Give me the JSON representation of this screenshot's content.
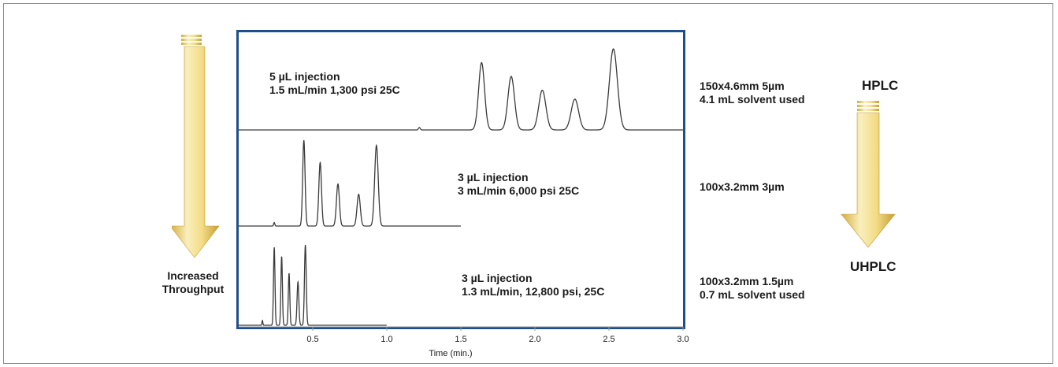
{
  "chart_data": {
    "type": "line",
    "xlabel": "Time (min.)",
    "xlim": [
      0,
      3.0
    ],
    "x_ticks": [
      "0.5",
      "1.0",
      "1.5",
      "2.0",
      "2.5",
      "3.0"
    ],
    "x_tick_values": [
      0.5,
      1.0,
      1.5,
      2.0,
      2.5,
      3.0
    ],
    "series": [
      {
        "injection": "5 µL injection",
        "conditions": "1.5 mL/min 1,300 psi 25C",
        "column": "150x4.6mm 5µm",
        "solvent": "4.1 mL solvent used",
        "peaks": [
          {
            "rt": 1.22,
            "height": 0.03,
            "width": 0.006
          },
          {
            "rt": 1.64,
            "height": 0.83,
            "width": 0.02
          },
          {
            "rt": 1.84,
            "height": 0.66,
            "width": 0.022
          },
          {
            "rt": 2.05,
            "height": 0.49,
            "width": 0.024
          },
          {
            "rt": 2.27,
            "height": 0.38,
            "width": 0.025
          },
          {
            "rt": 2.53,
            "height": 1.0,
            "width": 0.027
          }
        ]
      },
      {
        "injection": "3 µL injection",
        "conditions": "3 mL/min 6,000 psi 25C",
        "column": "100x3.2mm 3µm",
        "solvent": "",
        "peaks": [
          {
            "rt": 0.24,
            "height": 0.04,
            "width": 0.004
          },
          {
            "rt": 0.44,
            "height": 1.0,
            "width": 0.008
          },
          {
            "rt": 0.55,
            "height": 0.74,
            "width": 0.009
          },
          {
            "rt": 0.67,
            "height": 0.49,
            "width": 0.01
          },
          {
            "rt": 0.81,
            "height": 0.37,
            "width": 0.011
          },
          {
            "rt": 0.93,
            "height": 0.94,
            "width": 0.012
          }
        ]
      },
      {
        "injection": "3 µL injection",
        "conditions": "1.3 mL/min, 12,800 psi, 25C",
        "column": "100x3.2mm 1.5µm",
        "solvent": "0.7 mL solvent used",
        "peaks": [
          {
            "rt": 0.16,
            "height": 0.06,
            "width": 0.003
          },
          {
            "rt": 0.24,
            "height": 0.97,
            "width": 0.005
          },
          {
            "rt": 0.29,
            "height": 0.86,
            "width": 0.005
          },
          {
            "rt": 0.34,
            "height": 0.65,
            "width": 0.005
          },
          {
            "rt": 0.4,
            "height": 0.54,
            "width": 0.006
          },
          {
            "rt": 0.45,
            "height": 1.0,
            "width": 0.006
          }
        ]
      }
    ]
  },
  "labels": {
    "left_arrow_text_1": "Increased",
    "left_arrow_text_2": "Throughput",
    "hplc": "HPLC",
    "uhplc": "UHPLC"
  },
  "colors": {
    "plot_border": "#1f4e8c",
    "trace": "#3a3a3a",
    "arrow_light": "#f7eab0",
    "arrow_dark": "#c9a23b"
  }
}
